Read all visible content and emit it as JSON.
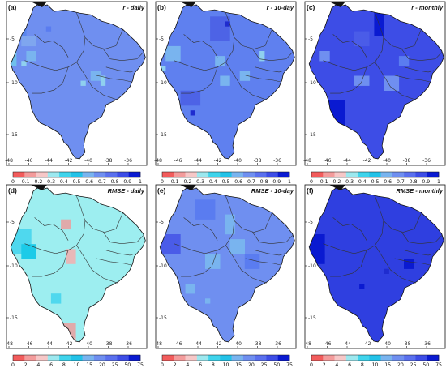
{
  "figure": {
    "panels": [
      {
        "label": "(a)",
        "title": "r - daily",
        "scale": "r",
        "base": "#6f8ff0",
        "patches": [
          {
            "c": 2,
            "r": 5,
            "w": 2,
            "h": 2,
            "color": "#5a86ee"
          },
          {
            "c": 3,
            "r": 7,
            "w": 3,
            "h": 2,
            "color": "#7fa6ef"
          },
          {
            "c": 1,
            "r": 10,
            "w": 1,
            "h": 3,
            "color": "#6fc0ec"
          },
          {
            "c": 4,
            "r": 10,
            "w": 2,
            "h": 2,
            "color": "#79b4ef"
          },
          {
            "c": 3,
            "r": 12,
            "w": 1,
            "h": 1,
            "color": "#8fd0ef"
          },
          {
            "c": 8,
            "r": 5,
            "w": 1,
            "h": 1,
            "color": "#5a7cf0"
          },
          {
            "c": 17,
            "r": 14,
            "w": 2,
            "h": 2,
            "color": "#79b4ef"
          },
          {
            "c": 15,
            "r": 16,
            "w": 1,
            "h": 1,
            "color": "#8fd0ef"
          },
          {
            "c": 19,
            "r": 15,
            "w": 1,
            "h": 2,
            "color": "#8fd0ef"
          }
        ]
      },
      {
        "label": "(b)",
        "title": "r - 10-day",
        "scale": "r",
        "base": "#5f80ef",
        "patches": [
          {
            "c": 11,
            "r": 3,
            "w": 4,
            "h": 5,
            "color": "#4d63e6"
          },
          {
            "c": 14,
            "r": 4,
            "w": 1,
            "h": 1,
            "color": "#1f2ccf"
          },
          {
            "c": 2,
            "r": 9,
            "w": 3,
            "h": 3,
            "color": "#79b4ef"
          },
          {
            "c": 1,
            "r": 13,
            "w": 1,
            "h": 1,
            "color": "#8fd0ef"
          },
          {
            "c": 5,
            "r": 18,
            "w": 4,
            "h": 3,
            "color": "#4d63e6"
          },
          {
            "c": 7,
            "r": 22,
            "w": 1,
            "h": 1,
            "color": "#1f2ccf"
          },
          {
            "c": 12,
            "r": 11,
            "w": 2,
            "h": 2,
            "color": "#79b4ef"
          },
          {
            "c": 13,
            "r": 15,
            "w": 2,
            "h": 2,
            "color": "#79b4ef"
          },
          {
            "c": 17,
            "r": 14,
            "w": 2,
            "h": 2,
            "color": "#79b4ef"
          },
          {
            "c": 21,
            "r": 10,
            "w": 1,
            "h": 2,
            "color": "#8fd0ef"
          }
        ]
      },
      {
        "label": "(c)",
        "title": "r - monthly",
        "scale": "r",
        "base": "#3d4de6",
        "patches": [
          {
            "c": 10,
            "r": 6,
            "w": 3,
            "h": 3,
            "color": "#4a5ce8"
          },
          {
            "c": 14,
            "r": 1,
            "w": 2,
            "h": 6,
            "color": "#0a1ad1"
          },
          {
            "c": 3,
            "r": 20,
            "w": 5,
            "h": 5,
            "color": "#0a1ad1"
          },
          {
            "c": 3,
            "r": 10,
            "w": 2,
            "h": 2,
            "color": "#6f8ff0"
          },
          {
            "c": 10,
            "r": 15,
            "w": 3,
            "h": 2,
            "color": "#6f8ff0"
          },
          {
            "c": 16,
            "r": 15,
            "w": 3,
            "h": 3,
            "color": "#6f8ff0"
          },
          {
            "c": 19,
            "r": 11,
            "w": 2,
            "h": 2,
            "color": "#5a7cf0"
          }
        ]
      },
      {
        "label": "(d)",
        "title": "RMSE - daily",
        "scale": "rmse",
        "base": "#9deef0",
        "patches": [
          {
            "c": 1,
            "r": 9,
            "w": 4,
            "h": 5,
            "color": "#4fd8ee"
          },
          {
            "c": 3,
            "r": 12,
            "w": 3,
            "h": 3,
            "color": "#1ccbe8"
          },
          {
            "c": 11,
            "r": 7,
            "w": 2,
            "h": 2,
            "color": "#e0aaaa"
          },
          {
            "c": 12,
            "r": 13,
            "w": 2,
            "h": 3,
            "color": "#e8b8b8"
          },
          {
            "c": 9,
            "r": 22,
            "w": 2,
            "h": 2,
            "color": "#4fd8ee"
          },
          {
            "c": 6,
            "r": 25,
            "w": 2,
            "h": 1,
            "color": "#e0aaaa"
          },
          {
            "c": 11,
            "r": 28,
            "w": 3,
            "h": 3,
            "color": "#e0aaaa"
          },
          {
            "c": 12,
            "r": 31,
            "w": 2,
            "h": 2,
            "color": "#e8b8b8"
          }
        ]
      },
      {
        "label": "(e)",
        "title": "RMSE - 10-day",
        "scale": "rmse",
        "base": "#6f8ff0",
        "patches": [
          {
            "c": 1,
            "r": 10,
            "w": 4,
            "h": 4,
            "color": "#4a5ce8"
          },
          {
            "c": 8,
            "r": 3,
            "w": 4,
            "h": 4,
            "color": "#5a7cf0"
          },
          {
            "c": 14,
            "r": 6,
            "w": 2,
            "h": 4,
            "color": "#79b4ef"
          },
          {
            "c": 10,
            "r": 14,
            "w": 3,
            "h": 3,
            "color": "#79b4ef"
          },
          {
            "c": 15,
            "r": 11,
            "w": 3,
            "h": 3,
            "color": "#79b4ef"
          },
          {
            "c": 18,
            "r": 14,
            "w": 3,
            "h": 3,
            "color": "#5a7cf0"
          },
          {
            "c": 6,
            "r": 20,
            "w": 2,
            "h": 2,
            "color": "#79b4ef"
          },
          {
            "c": 10,
            "r": 23,
            "w": 1,
            "h": 1,
            "color": "#79b4ef"
          }
        ]
      },
      {
        "label": "(f)",
        "title": "RMSE - monthly",
        "scale": "rmse",
        "base": "#2f3fe0",
        "patches": [
          {
            "c": 1,
            "r": 10,
            "w": 3,
            "h": 5,
            "color": "#0a1ad1"
          },
          {
            "c": 2,
            "r": 14,
            "w": 2,
            "h": 2,
            "color": "#0a1ad1"
          },
          {
            "c": 20,
            "r": 15,
            "w": 2,
            "h": 2,
            "color": "#0a1ad1"
          },
          {
            "c": 11,
            "r": 20,
            "w": 1,
            "h": 1,
            "color": "#0a1ad1"
          },
          {
            "c": 16,
            "r": 17,
            "w": 1,
            "h": 1,
            "color": "#1f2ccf"
          }
        ]
      }
    ],
    "xticks": [
      "-48",
      "-46",
      "-44",
      "-42",
      "-40",
      "-38",
      "-36"
    ],
    "yticks": [
      "-5",
      "-10",
      "-15"
    ],
    "colorbars": {
      "r": {
        "labels": [
          "0",
          "0.1",
          "0.2",
          "0.3",
          "0.4",
          "0.5",
          "0.6",
          "0.7",
          "0.8",
          "0.9",
          "1"
        ],
        "colors": [
          "#f25c5c",
          "#f39b9b",
          "#f6c7c7",
          "#9ce8ef",
          "#3fd4ec",
          "#22c2e8",
          "#79b4ef",
          "#6f8ff0",
          "#5a70ee",
          "#3d4de6",
          "#0a1ad1"
        ]
      },
      "rmse": {
        "labels": [
          "0",
          "2",
          "4",
          "6",
          "8",
          "10",
          "15",
          "20",
          "25",
          "50",
          "75"
        ],
        "colors": [
          "#f25c5c",
          "#f39b9b",
          "#f6c7c7",
          "#9ce8ef",
          "#3fd4ec",
          "#22c2e8",
          "#79b4ef",
          "#6f8ff0",
          "#5a70ee",
          "#3d4de6",
          "#0a1ad1"
        ]
      }
    },
    "colors": {
      "border": "#111111",
      "region_line": "#333333",
      "background": "#ffffff"
    }
  }
}
